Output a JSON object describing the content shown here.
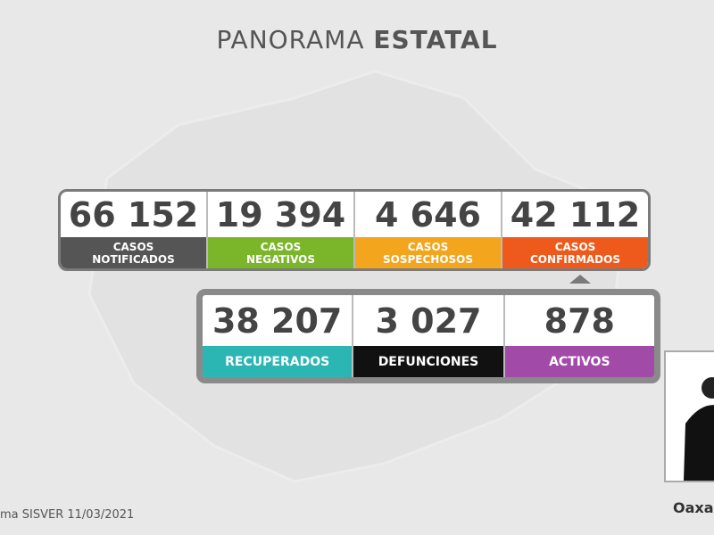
{
  "header": {
    "title_light": "PANORAMA",
    "title_bold": "ESTATAL"
  },
  "top_row": [
    {
      "number": "66 152",
      "label": [
        "CASOS",
        "NOTIFICADOS"
      ],
      "color": "#555555"
    },
    {
      "number": "19 394",
      "label": [
        "CASOS",
        "NEGATIVOS"
      ],
      "color": "#7bb52a"
    },
    {
      "number": "4 646",
      "label": [
        "CASOS",
        "SOSPECHOSOS"
      ],
      "color": "#f2a51d"
    },
    {
      "number": "42 112",
      "label": [
        "CASOS",
        "CONFIRMADOS"
      ],
      "color": "#ee5a1b"
    }
  ],
  "bottom_row": [
    {
      "number": "38 207",
      "label": [
        "RECUPERADOS"
      ],
      "color": "#2bb6b3"
    },
    {
      "number": "3 027",
      "label": [
        "DEFUNCIONES"
      ],
      "color": "#111111"
    },
    {
      "number": "878",
      "label": [
        "ACTIVOS"
      ],
      "color": "#a24aa8"
    }
  ],
  "footer": {
    "source": "ma SISVER 11/03/2021",
    "logo": "Oaxa"
  }
}
